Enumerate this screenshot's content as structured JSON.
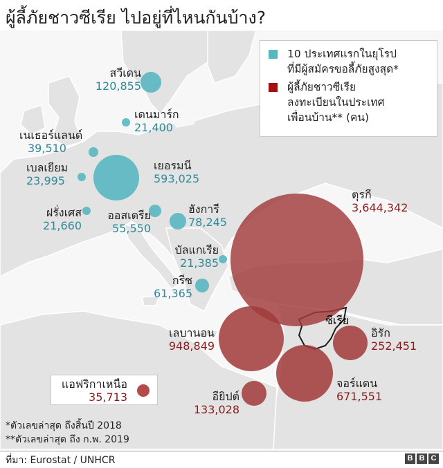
{
  "title": "ผู้ลี้ภัยชาวซีเรีย ไปอยู่ที่ไหนกันบ้าง?",
  "colors": {
    "eu": "#58b6c0",
    "neighbour": "#a13a3a",
    "land": "#e3e3e3",
    "sea": "#f7f7f7",
    "eu_text": "#2e8a99",
    "neighbour_text": "#8a1a1a"
  },
  "legend": {
    "eu_lines": [
      "10 ประเทศแรกในยุโรป",
      "ที่มีผู้สมัครขอลี้ภัยสูงสุด*"
    ],
    "neighbour_lines": [
      "ผู้ลี้ภัยชาวซีเรีย",
      "ลงทะเบียนในประเทศ",
      "เพื่อนบ้าน** (คน)"
    ]
  },
  "countries": {
    "sweden": {
      "name": "สวีเดน",
      "value": "120,855"
    },
    "denmark": {
      "name": "เดนมาร์ก",
      "value": "21,400"
    },
    "netherlands": {
      "name": "เนเธอร์แลนด์",
      "value": "39,510"
    },
    "belgium": {
      "name": "เบลเยียม",
      "value": "23,995"
    },
    "germany": {
      "name": "เยอรมนี",
      "value": "593,025"
    },
    "france": {
      "name": "ฝรั่งเศส",
      "value": "21,660"
    },
    "austria": {
      "name": "ออสเตรีย",
      "value": "55,550"
    },
    "hungary": {
      "name": "ฮังการี",
      "value": "78,245"
    },
    "bulgaria": {
      "name": "บัลแกเรีย",
      "value": "21,385"
    },
    "greece": {
      "name": "กรีซ",
      "value": "61,365"
    },
    "turkey": {
      "name": "ตุรกี",
      "value": "3,644,342"
    },
    "lebanon": {
      "name": "เลบานอน",
      "value": "948,849"
    },
    "iraq": {
      "name": "อิรัก",
      "value": "252,451"
    },
    "jordan": {
      "name": "จอร์แดน",
      "value": "671,551"
    },
    "egypt": {
      "name": "อียิปต์",
      "value": "133,028"
    },
    "north_africa": {
      "name": "แอฟริกาเหนือ",
      "value": "35,713"
    }
  },
  "syria_label": "ซีเรีย",
  "notes": [
    "*ตัวเลขล่าสุด ถึงสิ้นปี 2018",
    "**ตัวเลขล่าสุด ถึง ก.พ. 2019"
  ],
  "source": "ที่มา: Eurostat / UNHCR",
  "logo": [
    "B",
    "B",
    "C"
  ]
}
